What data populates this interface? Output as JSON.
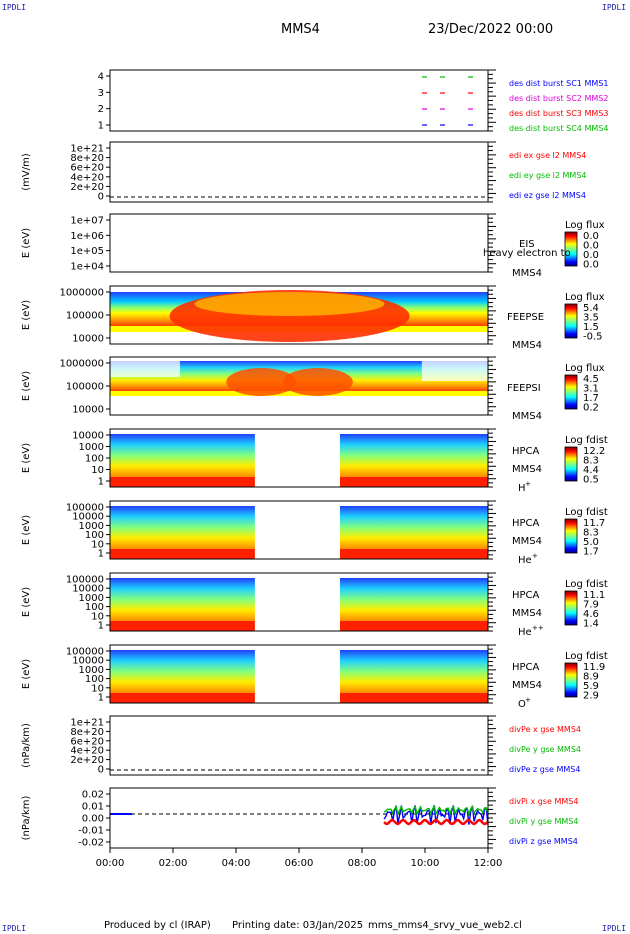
{
  "header": {
    "corner_tl": "IPDLI",
    "corner_tr": "IPDLI",
    "corner_bl": "IPDLI",
    "corner_br": "IPDLI",
    "spacecraft": "MMS4",
    "date": "23/Dec/2022 00:00"
  },
  "footer": {
    "produced": "Produced by cl (IRAP)",
    "printing": "Printing date: 03/Jan/2025",
    "file": "mms_mms4_srvy_vue_web2.cl"
  },
  "chart_data": {
    "type": "multi-panel time series / spectrograms",
    "x_range": [
      "00:00",
      "12:00"
    ],
    "x_ticks": [
      "00:00",
      "02:00",
      "04:00",
      "06:00",
      "08:00",
      "10:00",
      "12:00"
    ],
    "panels": [
      {
        "id": "burst",
        "type": "scatter",
        "y_ticks": [
          "4",
          "3",
          "2",
          "1"
        ],
        "legend": [
          {
            "name": "des dist burst SC1 MMS1",
            "color": "#0000ff"
          },
          {
            "name": "des dist burst SC2 MMS2",
            "color": "#dd00dd"
          },
          {
            "name": "des dist burst SC3 MMS3",
            "color": "#ff0000"
          },
          {
            "name": "des dist burst SC4 MMS4",
            "color": "#00bb00"
          }
        ]
      },
      {
        "id": "edi",
        "type": "line",
        "ylabel": "(mV/m)",
        "y_ticks": [
          "1e+21",
          "8e+20",
          "6e+20",
          "4e+20",
          "2e+20",
          "0"
        ],
        "legend": [
          {
            "name": "edi ex gse l2 MMS4",
            "color": "#ff0000"
          },
          {
            "name": "edi ey gse l2 MMS4",
            "color": "#00bb00"
          },
          {
            "name": "edi ez gse l2 MMS4",
            "color": "#0000ff"
          }
        ]
      },
      {
        "id": "eis",
        "type": "heatmap",
        "ylabel": "E (eV)",
        "y_ticks": [
          "1e+07",
          "1e+06",
          "1e+05",
          "1e+04"
        ],
        "labels": [
          "EIS",
          "heavy electron to",
          "MMS4"
        ],
        "colorbar": {
          "title": "Log flux",
          "ticks": [
            "0.0",
            "0.0",
            "0.0",
            "0.0"
          ]
        }
      },
      {
        "id": "feepse",
        "type": "heatmap",
        "ylabel": "E (eV)",
        "y_ticks": [
          "1000000",
          "100000",
          "10000"
        ],
        "labels": [
          "FEEPSE",
          "MMS4"
        ],
        "colorbar": {
          "title": "Log flux",
          "ticks": [
            "5.4",
            "3.5",
            "1.5",
            "-0.5"
          ]
        }
      },
      {
        "id": "feepsi",
        "type": "heatmap",
        "ylabel": "E (eV)",
        "y_ticks": [
          "1000000",
          "100000",
          "10000"
        ],
        "labels": [
          "FEEPSI",
          "MMS4"
        ],
        "colorbar": {
          "title": "Log flux",
          "ticks": [
            "4.5",
            "3.1",
            "1.7",
            "0.2"
          ]
        }
      },
      {
        "id": "hpca_h",
        "type": "heatmap",
        "ylabel": "E (eV)",
        "y_ticks": [
          "10000",
          "1000",
          "100",
          "10",
          "1"
        ],
        "labels": [
          "HPCA",
          "MMS4",
          "H",
          "+"
        ],
        "colorbar": {
          "title": "Log fdist",
          "ticks": [
            "12.2",
            "8.3",
            "4.4",
            "0.5"
          ]
        }
      },
      {
        "id": "hpca_he",
        "type": "heatmap",
        "ylabel": "E (eV)",
        "y_ticks": [
          "100000",
          "10000",
          "1000",
          "100",
          "10",
          "1"
        ],
        "labels": [
          "HPCA",
          "MMS4",
          "He",
          "+"
        ],
        "colorbar": {
          "title": "Log fdist",
          "ticks": [
            "11.7",
            "8.3",
            "5.0",
            "1.7"
          ]
        }
      },
      {
        "id": "hpca_hepp",
        "type": "heatmap",
        "ylabel": "E (eV)",
        "y_ticks": [
          "100000",
          "10000",
          "1000",
          "100",
          "10",
          "1"
        ],
        "labels": [
          "HPCA",
          "MMS4",
          "He",
          "++"
        ],
        "colorbar": {
          "title": "Log fdist",
          "ticks": [
            "11.1",
            "7.9",
            "4.6",
            "1.4"
          ]
        }
      },
      {
        "id": "hpca_o",
        "type": "heatmap",
        "ylabel": "E (eV)",
        "y_ticks": [
          "100000",
          "10000",
          "1000",
          "100",
          "10",
          "1"
        ],
        "labels": [
          "HPCA",
          "MMS4",
          "O",
          "+"
        ],
        "colorbar": {
          "title": "Log fdist",
          "ticks": [
            "11.9",
            "8.9",
            "5.9",
            "2.9"
          ]
        }
      },
      {
        "id": "divpe",
        "type": "line",
        "ylabel": "(nPa/km)",
        "y_ticks": [
          "1e+21",
          "8e+20",
          "6e+20",
          "4e+20",
          "2e+20",
          "0"
        ],
        "legend": [
          {
            "name": "divPe x gse MMS4",
            "color": "#ff0000"
          },
          {
            "name": "divPe y gse MMS4",
            "color": "#00bb00"
          },
          {
            "name": "divPe z gse MMS4",
            "color": "#0000ff"
          }
        ]
      },
      {
        "id": "divpi",
        "type": "line",
        "ylabel": "(nPa/km)",
        "y_ticks": [
          "0.02",
          "0.01",
          "0.00",
          "-0.01",
          "-0.02"
        ],
        "legend": [
          {
            "name": "divPi x gse MMS4",
            "color": "#ff0000"
          },
          {
            "name": "divPi y gse MMS4",
            "color": "#00bb00"
          },
          {
            "name": "divPi z gse MMS4",
            "color": "#0000ff"
          }
        ]
      }
    ]
  }
}
